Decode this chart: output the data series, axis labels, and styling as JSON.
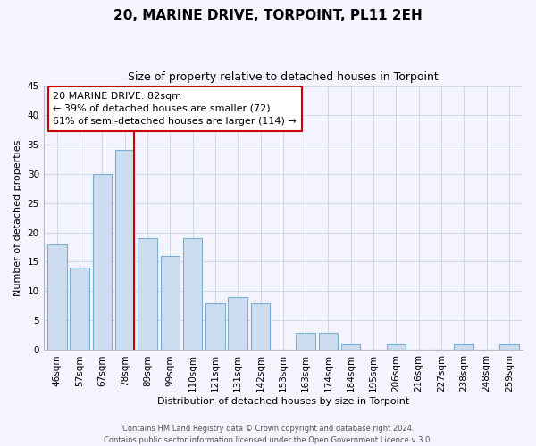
{
  "title": "20, MARINE DRIVE, TORPOINT, PL11 2EH",
  "subtitle": "Size of property relative to detached houses in Torpoint",
  "xlabel": "Distribution of detached houses by size in Torpoint",
  "ylabel": "Number of detached properties",
  "bar_labels": [
    "46sqm",
    "57sqm",
    "67sqm",
    "78sqm",
    "89sqm",
    "99sqm",
    "110sqm",
    "121sqm",
    "131sqm",
    "142sqm",
    "153sqm",
    "163sqm",
    "174sqm",
    "184sqm",
    "195sqm",
    "206sqm",
    "216sqm",
    "227sqm",
    "238sqm",
    "248sqm",
    "259sqm"
  ],
  "bar_values": [
    18,
    14,
    30,
    34,
    19,
    16,
    19,
    8,
    9,
    8,
    0,
    3,
    3,
    1,
    0,
    1,
    0,
    0,
    1,
    0,
    1
  ],
  "bar_color": "#ccddf0",
  "bar_edge_color": "#7aafd4",
  "ylim": [
    0,
    45
  ],
  "yticks": [
    0,
    5,
    10,
    15,
    20,
    25,
    30,
    35,
    40,
    45
  ],
  "marker_label": "20 MARINE DRIVE: 82sqm",
  "annotation_line1": "← 39% of detached houses are smaller (72)",
  "annotation_line2": "61% of semi-detached houses are larger (114) →",
  "footer_line1": "Contains HM Land Registry data © Crown copyright and database right 2024.",
  "footer_line2": "Contains public sector information licensed under the Open Government Licence v 3.0.",
  "background_color": "#f4f4ff",
  "grid_color": "#d0d8ec",
  "title_fontsize": 11,
  "subtitle_fontsize": 9,
  "axis_label_fontsize": 8,
  "tick_fontsize": 7.5,
  "annotation_fontsize": 8,
  "footer_fontsize": 6
}
